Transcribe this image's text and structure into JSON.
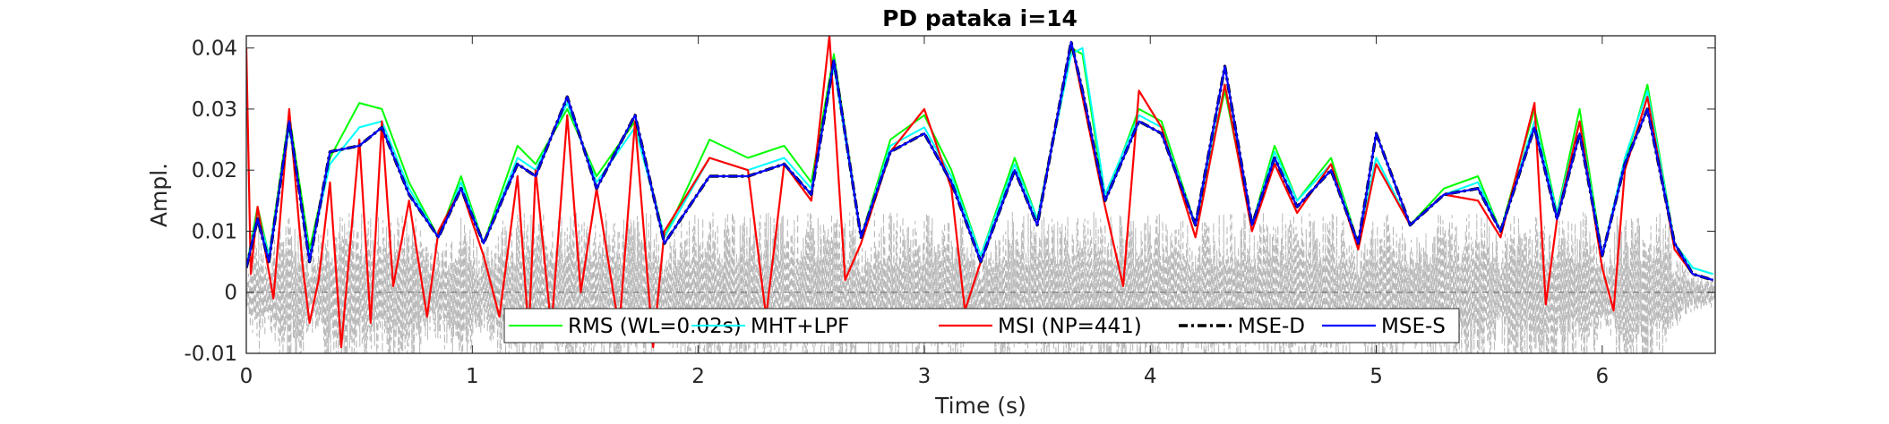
{
  "colors": {
    "signal": "#b8b8b8",
    "rms": "#00ff00",
    "mht": "#00ffff",
    "msi": "#ff0000",
    "msed": "#000000",
    "mses": "#0000ff",
    "zero_line": "#666666",
    "axes": "#262626"
  },
  "chart_data": {
    "type": "line",
    "title": "PD pataka i=14",
    "xlabel": "Time (s)",
    "ylabel": "Ampl.",
    "xlim": [
      0,
      6.5
    ],
    "ylim": [
      -0.01,
      0.042
    ],
    "xticks": [
      0,
      1,
      2,
      3,
      4,
      5,
      6
    ],
    "xtick_labels": [
      "0",
      "1",
      "2",
      "3",
      "4",
      "5",
      "6"
    ],
    "yticks": [
      -0.01,
      0,
      0.01,
      0.02,
      0.03,
      0.04
    ],
    "ytick_labels": [
      "-0.01",
      "0",
      "0.01",
      "0.02",
      "0.03",
      "0.04"
    ],
    "grid": false,
    "legend_position": "bottom-center",
    "zero_line": {
      "y": 0,
      "style": "dashed"
    },
    "signal": {
      "style": "dashed",
      "approx_range": [
        -0.012,
        0.012
      ]
    },
    "series": [
      {
        "name": "RMS (WL=0.02s)",
        "key": "rms",
        "style": "solid",
        "x": [
          0,
          0.05,
          0.1,
          0.19,
          0.28,
          0.37,
          0.5,
          0.6,
          0.72,
          0.85,
          0.95,
          1.05,
          1.2,
          1.28,
          1.42,
          1.55,
          1.72,
          1.85,
          2.05,
          2.22,
          2.38,
          2.5,
          2.6,
          2.72,
          2.85,
          3.0,
          3.12,
          3.25,
          3.4,
          3.5,
          3.65,
          3.7,
          3.8,
          3.95,
          4.05,
          4.2,
          4.33,
          4.45,
          4.55,
          4.65,
          4.8,
          4.92,
          5.0,
          5.15,
          5.3,
          5.45,
          5.55,
          5.7,
          5.8,
          5.9,
          6.0,
          6.1,
          6.2,
          6.32,
          6.4,
          6.49
        ],
        "y": [
          0.004,
          0.014,
          0.006,
          0.029,
          0.007,
          0.022,
          0.031,
          0.03,
          0.018,
          0.009,
          0.019,
          0.008,
          0.024,
          0.021,
          0.03,
          0.019,
          0.028,
          0.009,
          0.025,
          0.022,
          0.024,
          0.018,
          0.039,
          0.009,
          0.025,
          0.029,
          0.02,
          0.006,
          0.022,
          0.012,
          0.04,
          0.039,
          0.015,
          0.03,
          0.028,
          0.011,
          0.033,
          0.011,
          0.024,
          0.015,
          0.022,
          0.008,
          0.022,
          0.011,
          0.017,
          0.019,
          0.01,
          0.03,
          0.013,
          0.03,
          0.006,
          0.021,
          0.034,
          0.008,
          0.004,
          0.003
        ]
      },
      {
        "name": "MHT+LPF",
        "key": "mht",
        "style": "solid",
        "x": [
          0,
          0.05,
          0.1,
          0.19,
          0.28,
          0.37,
          0.5,
          0.6,
          0.72,
          0.85,
          0.95,
          1.05,
          1.2,
          1.28,
          1.42,
          1.55,
          1.72,
          1.85,
          2.05,
          2.22,
          2.38,
          2.5,
          2.6,
          2.72,
          2.85,
          3.0,
          3.12,
          3.25,
          3.4,
          3.5,
          3.65,
          3.7,
          3.8,
          3.95,
          4.05,
          4.2,
          4.33,
          4.45,
          4.55,
          4.65,
          4.8,
          4.92,
          5.0,
          5.15,
          5.3,
          5.45,
          5.55,
          5.7,
          5.8,
          5.9,
          6.0,
          6.1,
          6.2,
          6.32,
          6.4,
          6.49
        ],
        "y": [
          0.004,
          0.013,
          0.006,
          0.027,
          0.006,
          0.021,
          0.027,
          0.028,
          0.017,
          0.009,
          0.018,
          0.008,
          0.022,
          0.02,
          0.031,
          0.018,
          0.027,
          0.009,
          0.022,
          0.02,
          0.022,
          0.017,
          0.037,
          0.009,
          0.024,
          0.027,
          0.019,
          0.006,
          0.021,
          0.012,
          0.039,
          0.04,
          0.016,
          0.029,
          0.027,
          0.011,
          0.034,
          0.011,
          0.023,
          0.015,
          0.021,
          0.008,
          0.022,
          0.011,
          0.016,
          0.018,
          0.01,
          0.028,
          0.013,
          0.028,
          0.006,
          0.022,
          0.033,
          0.008,
          0.004,
          0.003
        ]
      },
      {
        "name": "MSI (NP=441)",
        "key": "msi",
        "style": "solid",
        "x": [
          0,
          0.02,
          0.05,
          0.12,
          0.19,
          0.25,
          0.28,
          0.32,
          0.37,
          0.42,
          0.5,
          0.55,
          0.6,
          0.65,
          0.72,
          0.8,
          0.85,
          0.95,
          1.05,
          1.12,
          1.2,
          1.25,
          1.28,
          1.35,
          1.42,
          1.48,
          1.55,
          1.65,
          1.72,
          1.8,
          1.85,
          2.05,
          2.22,
          2.3,
          2.38,
          2.5,
          2.58,
          2.65,
          2.72,
          2.85,
          3.0,
          3.12,
          3.18,
          3.25,
          3.4,
          3.5,
          3.65,
          3.7,
          3.8,
          3.88,
          3.95,
          4.05,
          4.2,
          4.33,
          4.45,
          4.55,
          4.65,
          4.8,
          4.92,
          5.0,
          5.15,
          5.3,
          5.45,
          5.55,
          5.7,
          5.75,
          5.8,
          5.9,
          6.0,
          6.05,
          6.1,
          6.2,
          6.32,
          6.4,
          6.49
        ],
        "y": [
          0.04,
          0.003,
          0.014,
          -0.001,
          0.03,
          0.004,
          -0.005,
          0.002,
          0.018,
          -0.009,
          0.025,
          -0.005,
          0.028,
          0.001,
          0.015,
          -0.004,
          0.01,
          0.017,
          0.006,
          -0.004,
          0.019,
          -0.007,
          0.02,
          -0.006,
          0.029,
          0.0,
          0.017,
          -0.006,
          0.028,
          -0.009,
          0.01,
          0.022,
          0.02,
          -0.004,
          0.021,
          0.015,
          0.042,
          0.002,
          0.008,
          0.023,
          0.03,
          0.017,
          -0.003,
          0.005,
          0.02,
          0.011,
          0.041,
          0.032,
          0.014,
          0.001,
          0.033,
          0.027,
          0.009,
          0.034,
          0.01,
          0.021,
          0.013,
          0.021,
          0.007,
          0.021,
          0.011,
          0.016,
          0.015,
          0.009,
          0.031,
          -0.002,
          0.012,
          0.028,
          0.004,
          -0.003,
          0.02,
          0.032,
          0.007,
          0.003,
          0.002
        ]
      },
      {
        "name": "MSE-D",
        "key": "msed",
        "style": "dashdot",
        "x": [
          0,
          0.05,
          0.1,
          0.19,
          0.28,
          0.37,
          0.5,
          0.6,
          0.72,
          0.85,
          0.95,
          1.05,
          1.2,
          1.28,
          1.42,
          1.55,
          1.72,
          1.85,
          2.05,
          2.22,
          2.38,
          2.5,
          2.6,
          2.72,
          2.85,
          3.0,
          3.12,
          3.25,
          3.4,
          3.5,
          3.65,
          3.7,
          3.8,
          3.95,
          4.05,
          4.2,
          4.33,
          4.45,
          4.55,
          4.65,
          4.8,
          4.92,
          5.0,
          5.15,
          5.3,
          5.45,
          5.55,
          5.7,
          5.8,
          5.9,
          6.0,
          6.1,
          6.2,
          6.32,
          6.4,
          6.49
        ],
        "y": [
          0.004,
          0.012,
          0.005,
          0.028,
          0.005,
          0.023,
          0.024,
          0.027,
          0.016,
          0.009,
          0.017,
          0.008,
          0.021,
          0.019,
          0.032,
          0.017,
          0.029,
          0.008,
          0.019,
          0.019,
          0.021,
          0.016,
          0.038,
          0.009,
          0.023,
          0.026,
          0.018,
          0.005,
          0.02,
          0.011,
          0.041,
          0.033,
          0.015,
          0.028,
          0.026,
          0.011,
          0.037,
          0.011,
          0.022,
          0.014,
          0.02,
          0.008,
          0.026,
          0.011,
          0.016,
          0.017,
          0.01,
          0.027,
          0.012,
          0.026,
          0.006,
          0.021,
          0.03,
          0.008,
          0.003,
          0.002
        ]
      },
      {
        "name": "MSE-S",
        "key": "mses",
        "style": "solid",
        "x": [
          0,
          0.05,
          0.1,
          0.19,
          0.28,
          0.37,
          0.5,
          0.6,
          0.72,
          0.85,
          0.95,
          1.05,
          1.2,
          1.28,
          1.42,
          1.55,
          1.72,
          1.85,
          2.05,
          2.22,
          2.38,
          2.5,
          2.6,
          2.72,
          2.85,
          3.0,
          3.12,
          3.25,
          3.4,
          3.5,
          3.65,
          3.7,
          3.8,
          3.95,
          4.05,
          4.2,
          4.33,
          4.45,
          4.55,
          4.65,
          4.8,
          4.92,
          5.0,
          5.15,
          5.3,
          5.45,
          5.55,
          5.7,
          5.8,
          5.9,
          6.0,
          6.1,
          6.2,
          6.32,
          6.4,
          6.49
        ],
        "y": [
          0.004,
          0.012,
          0.005,
          0.028,
          0.005,
          0.023,
          0.024,
          0.027,
          0.016,
          0.009,
          0.017,
          0.008,
          0.021,
          0.019,
          0.032,
          0.017,
          0.029,
          0.008,
          0.019,
          0.019,
          0.021,
          0.016,
          0.038,
          0.009,
          0.023,
          0.026,
          0.018,
          0.005,
          0.02,
          0.011,
          0.041,
          0.033,
          0.015,
          0.028,
          0.026,
          0.011,
          0.037,
          0.011,
          0.022,
          0.014,
          0.02,
          0.008,
          0.026,
          0.011,
          0.016,
          0.017,
          0.01,
          0.027,
          0.012,
          0.026,
          0.006,
          0.021,
          0.03,
          0.008,
          0.003,
          0.002
        ]
      }
    ]
  }
}
